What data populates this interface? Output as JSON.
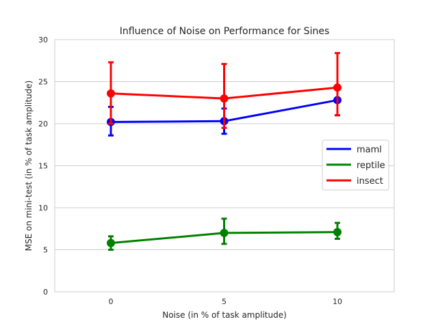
{
  "chart_data": {
    "type": "line",
    "title": "Influence of Noise on Performance for Sines",
    "xlabel": "Noise (in % of task amplitude)",
    "ylabel": "MSE on mini-test (in % of task amplitude)",
    "categories": [
      "0",
      "5",
      "10"
    ],
    "ylim": [
      0,
      30
    ],
    "yticks": [
      "0",
      "5",
      "10",
      "15",
      "20",
      "25",
      "30"
    ],
    "grid": "horizontal",
    "legend_position": "center-right",
    "series": [
      {
        "name": "maml",
        "color": "#0000ff",
        "values": [
          20.2,
          20.3,
          22.8
        ],
        "err_low": [
          18.6,
          18.8,
          21.0
        ],
        "err_high": [
          22.0,
          21.8,
          24.5
        ]
      },
      {
        "name": "reptile",
        "color": "#008000",
        "values": [
          5.8,
          7.0,
          7.1
        ],
        "err_low": [
          5.0,
          5.7,
          6.3
        ],
        "err_high": [
          6.6,
          8.7,
          8.2
        ]
      },
      {
        "name": "insect",
        "color": "#ff0000",
        "values": [
          23.6,
          23.0,
          24.3
        ],
        "err_low": [
          20.0,
          19.5,
          21.0
        ],
        "err_high": [
          27.3,
          27.1,
          28.4
        ]
      }
    ]
  }
}
